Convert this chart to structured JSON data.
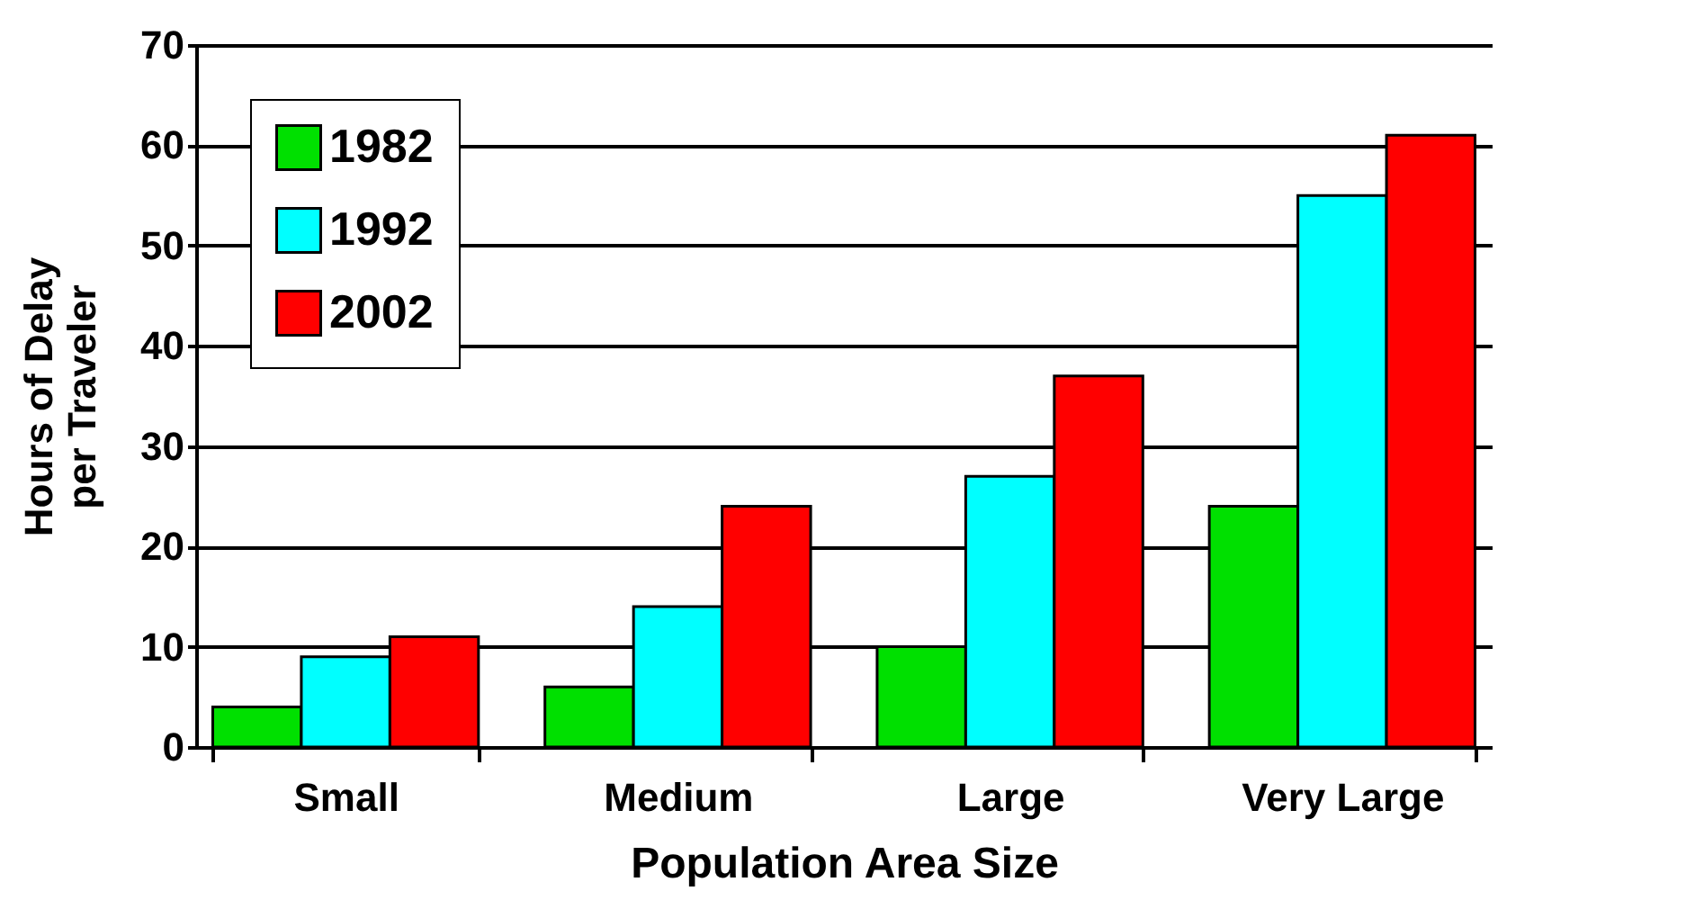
{
  "chart_data": {
    "type": "bar",
    "xlabel": "Population Area Size",
    "ylabel": "Hours of Delay\nper Traveler",
    "categories": [
      "Small",
      "Medium",
      "Large",
      "Very Large"
    ],
    "series": [
      {
        "name": "1982",
        "color": "#00e000",
        "values": [
          4,
          6,
          10,
          24
        ]
      },
      {
        "name": "1992",
        "color": "#00ffff",
        "values": [
          9,
          14,
          27,
          55
        ]
      },
      {
        "name": "2002",
        "color": "#ff0000",
        "values": [
          11,
          24,
          37,
          61
        ]
      }
    ],
    "ylim": [
      0,
      70
    ],
    "yticks": [
      0,
      10,
      20,
      30,
      40,
      50,
      60,
      70
    ],
    "grid": "y",
    "legend": "top left"
  }
}
